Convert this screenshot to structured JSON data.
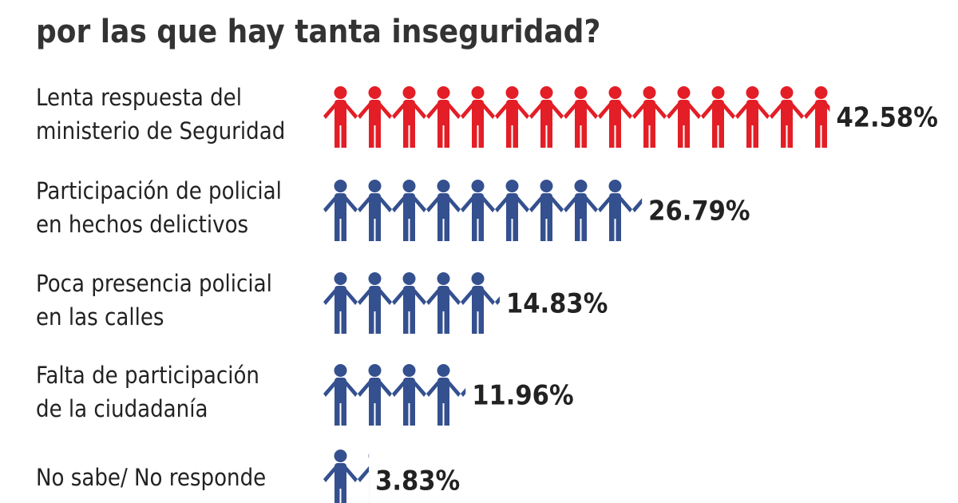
{
  "chart_data": {
    "type": "pictogram",
    "title": "por las que hay tanta inseguridad?",
    "categories": [
      [
        "Lenta respuesta del",
        "ministerio de Seguridad"
      ],
      [
        "Participación de policial",
        "en hechos delictivos"
      ],
      [
        "Poca presencia policial",
        "en las calles"
      ],
      [
        "Falta de participación",
        "de la ciudadanía"
      ],
      [
        "No sabe/ No responde"
      ]
    ],
    "values": [
      42.58,
      26.79,
      14.83,
      11.96,
      3.83
    ],
    "value_labels": [
      "42.58%",
      "26.79%",
      "14.83%",
      "11.96%",
      "3.83%"
    ],
    "colors": [
      "#e31e26",
      "#34508f",
      "#34508f",
      "#34508f",
      "#34508f"
    ]
  }
}
